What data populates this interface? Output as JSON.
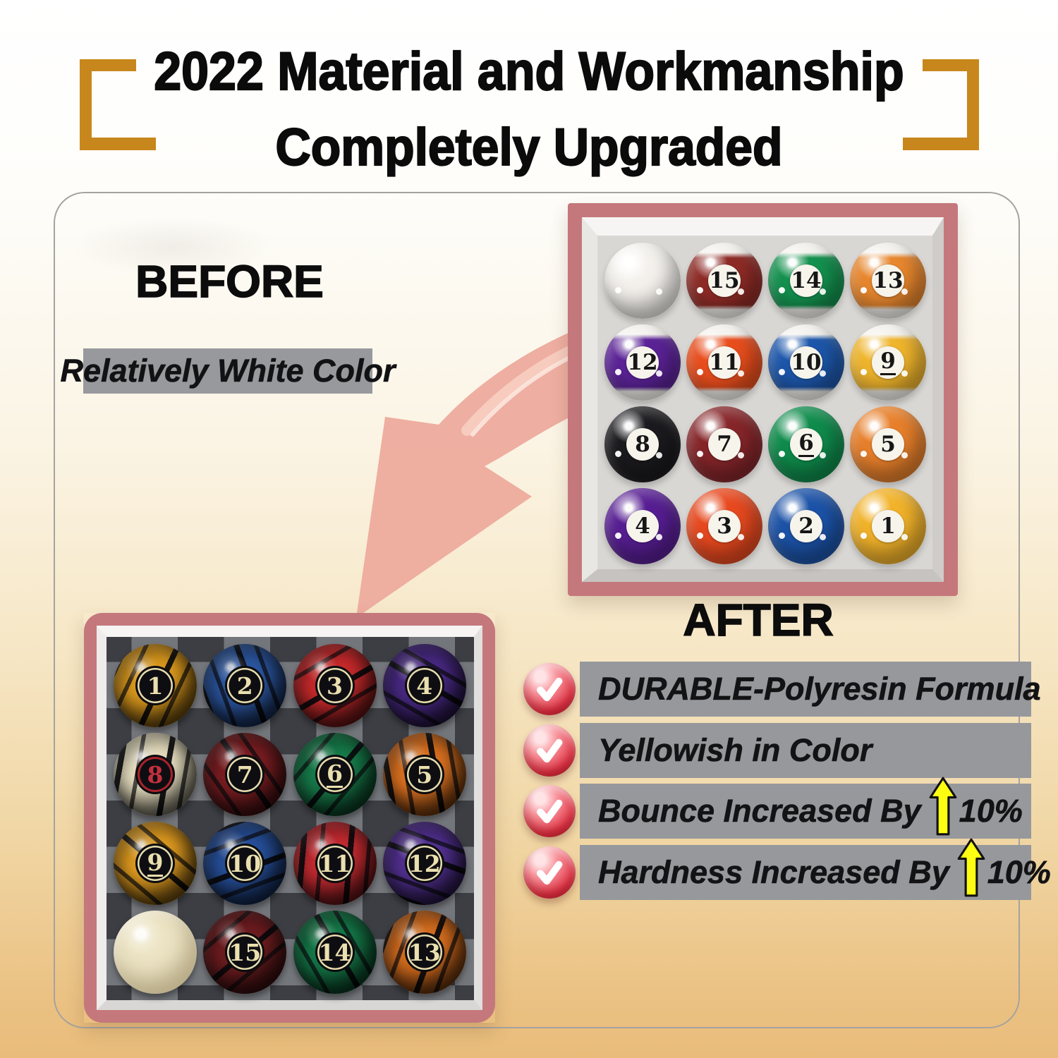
{
  "title": {
    "line1": "2022 Material and Workmanship",
    "line2": "Completely Upgraded"
  },
  "labels": {
    "before": "BEFORE",
    "before_note": "Relatively White Color",
    "after": "AFTER"
  },
  "features": [
    {
      "text": "DURABLE-Polyresin Formula",
      "suffix": ""
    },
    {
      "text": "Yellowish in Color",
      "suffix": ""
    },
    {
      "text": "Bounce Increased By",
      "suffix": "10%"
    },
    {
      "text": "Hardness Increased By",
      "suffix": "10%"
    }
  ],
  "after_photo": {
    "description": "upgraded yellowish pool ball set in box, 4x4",
    "balls": [
      {
        "num": "",
        "c": "#f2efe9",
        "t": "cue"
      },
      {
        "num": "15",
        "c": "#8e2b26",
        "t": "stripe"
      },
      {
        "num": "14",
        "c": "#13914e",
        "t": "stripe"
      },
      {
        "num": "13",
        "c": "#e8872e",
        "t": "stripe"
      },
      {
        "num": "12",
        "c": "#5b2397",
        "t": "stripe"
      },
      {
        "num": "11",
        "c": "#e94e1d",
        "t": "stripe"
      },
      {
        "num": "10",
        "c": "#1d57ab",
        "t": "stripe"
      },
      {
        "num": "9",
        "c": "#f0b52c",
        "t": "stripe",
        "u": true
      },
      {
        "num": "8",
        "c": "#1b1b1f",
        "t": "solid"
      },
      {
        "num": "7",
        "c": "#86262a",
        "t": "solid"
      },
      {
        "num": "6",
        "c": "#0f8c4c",
        "t": "solid",
        "u": true
      },
      {
        "num": "5",
        "c": "#e8802b",
        "t": "solid"
      },
      {
        "num": "4",
        "c": "#571e93",
        "t": "solid"
      },
      {
        "num": "3",
        "c": "#e8491f",
        "t": "solid"
      },
      {
        "num": "2",
        "c": "#1c53a8",
        "t": "solid"
      },
      {
        "num": "1",
        "c": "#f2b32a",
        "t": "solid"
      }
    ]
  },
  "before_photo": {
    "description": "old marbled white-ish pool ball set in box, 4x4",
    "balls": [
      {
        "num": "1",
        "c": "#dd9b1e",
        "t": "marble",
        "ang": "115deg"
      },
      {
        "num": "2",
        "c": "#2c57a2",
        "t": "marble",
        "ang": "70deg"
      },
      {
        "num": "3",
        "c": "#c92a2c",
        "t": "marble",
        "ang": "150deg"
      },
      {
        "num": "4",
        "c": "#4a2a86",
        "t": "marble",
        "ang": "30deg"
      },
      {
        "num": "8",
        "c": "#e9e1c2",
        "t": "marble8",
        "ang": "100deg"
      },
      {
        "num": "7",
        "c": "#7c1e22",
        "t": "marble",
        "ang": "55deg"
      },
      {
        "num": "6",
        "c": "#177d4b",
        "t": "marble",
        "ang": "130deg",
        "u": true
      },
      {
        "num": "5",
        "c": "#dd7220",
        "t": "marble",
        "ang": "80deg"
      },
      {
        "num": "9",
        "c": "#e09c20",
        "t": "marble",
        "ang": "40deg",
        "u": true
      },
      {
        "num": "10",
        "c": "#27509b",
        "t": "marble",
        "ang": "160deg"
      },
      {
        "num": "11",
        "c": "#c62b31",
        "t": "marble",
        "ang": "95deg"
      },
      {
        "num": "12",
        "c": "#533193",
        "t": "marble",
        "ang": "20deg"
      },
      {
        "num": "",
        "c": "#ece4c4",
        "t": "cue2"
      },
      {
        "num": "15",
        "c": "#6f1d20",
        "t": "marble",
        "ang": "140deg"
      },
      {
        "num": "14",
        "c": "#157a49",
        "t": "marble",
        "ang": "60deg"
      },
      {
        "num": "13",
        "c": "#d96f1f",
        "t": "marble",
        "ang": "110deg"
      }
    ]
  },
  "palette": {
    "gold_bracket": "#c8871c",
    "bar_gray": "#96989c",
    "photo_frame_rose": "#c5787c",
    "arrow_salmon": "#edab9e",
    "check_badge_red": "#e23a4b",
    "up_arrow_yellow": "#fdfd12"
  }
}
